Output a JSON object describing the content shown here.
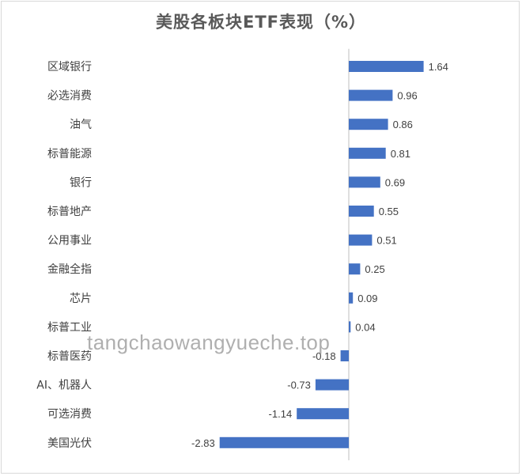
{
  "chart_data": {
    "type": "bar",
    "orientation": "horizontal",
    "title": "美股各板块ETF表现（%）",
    "categories": [
      "区域银行",
      "必选消费",
      "油气",
      "标普能源",
      "银行",
      "标普地产",
      "公用事业",
      "金融全指",
      "芯片",
      "标普工业",
      "标普医药",
      "AI、机器人",
      "可选消费",
      "美国光伏"
    ],
    "values": [
      1.64,
      0.96,
      0.86,
      0.81,
      0.69,
      0.55,
      0.51,
      0.25,
      0.09,
      0.04,
      -0.18,
      -0.73,
      -1.14,
      -2.83
    ],
    "value_labels": [
      "1.64",
      "0.96",
      "0.86",
      "0.81",
      "0.69",
      "0.55",
      "0.51",
      "0.25",
      "0.09",
      "0.04",
      "-0.18",
      "-0.73",
      "-1.14",
      "-2.83"
    ],
    "xlim": [
      -2.83,
      1.64
    ],
    "grid": false,
    "legend": "none",
    "bar_color": "#4472c4"
  },
  "watermark": "tangchaowangyueche.top"
}
